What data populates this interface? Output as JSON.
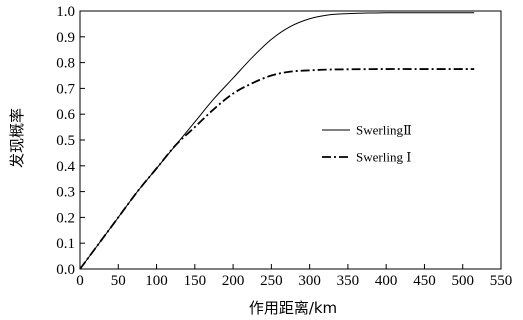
{
  "chart_data": {
    "type": "line",
    "title": "",
    "xlabel": "作用距离/km",
    "ylabel": "发现概率",
    "xlim": [
      0,
      550
    ],
    "ylim": [
      0,
      1.0
    ],
    "x_ticks": [
      0,
      50,
      100,
      150,
      200,
      250,
      300,
      350,
      400,
      450,
      500,
      550
    ],
    "y_ticks": [
      0.0,
      0.1,
      0.2,
      0.3,
      0.4,
      0.5,
      0.6,
      0.7,
      0.8,
      0.9,
      1.0
    ],
    "x_tick_labels": [
      "0",
      "50",
      "100",
      "150",
      "200",
      "250",
      "300",
      "350",
      "400",
      "450",
      "500",
      "550"
    ],
    "y_tick_labels": [
      "0.0",
      "0.1",
      "0.2",
      "0.3",
      "0.4",
      "0.5",
      "0.6",
      "0.7",
      "0.8",
      "0.9",
      "1.0"
    ],
    "grid": false,
    "legend_position": "right-middle",
    "series": [
      {
        "name": "SwerlingⅡ",
        "line_style": "solid",
        "color": "#000000",
        "x": [
          0,
          25,
          50,
          75,
          100,
          125,
          150,
          175,
          200,
          225,
          250,
          275,
          300,
          325,
          350,
          375,
          400,
          450,
          515
        ],
        "y": [
          0.0,
          0.1,
          0.2,
          0.3,
          0.39,
          0.48,
          0.57,
          0.66,
          0.74,
          0.82,
          0.89,
          0.94,
          0.97,
          0.985,
          0.99,
          0.992,
          0.993,
          0.993,
          0.993
        ]
      },
      {
        "name": "Swerling Ⅰ",
        "line_style": "dash-dot",
        "color": "#000000",
        "x": [
          0,
          25,
          50,
          75,
          100,
          125,
          150,
          175,
          200,
          225,
          250,
          275,
          300,
          325,
          350,
          400,
          450,
          515
        ],
        "y": [
          0.0,
          0.1,
          0.2,
          0.3,
          0.39,
          0.48,
          0.55,
          0.62,
          0.68,
          0.72,
          0.75,
          0.765,
          0.77,
          0.773,
          0.774,
          0.775,
          0.775,
          0.775
        ]
      }
    ]
  }
}
